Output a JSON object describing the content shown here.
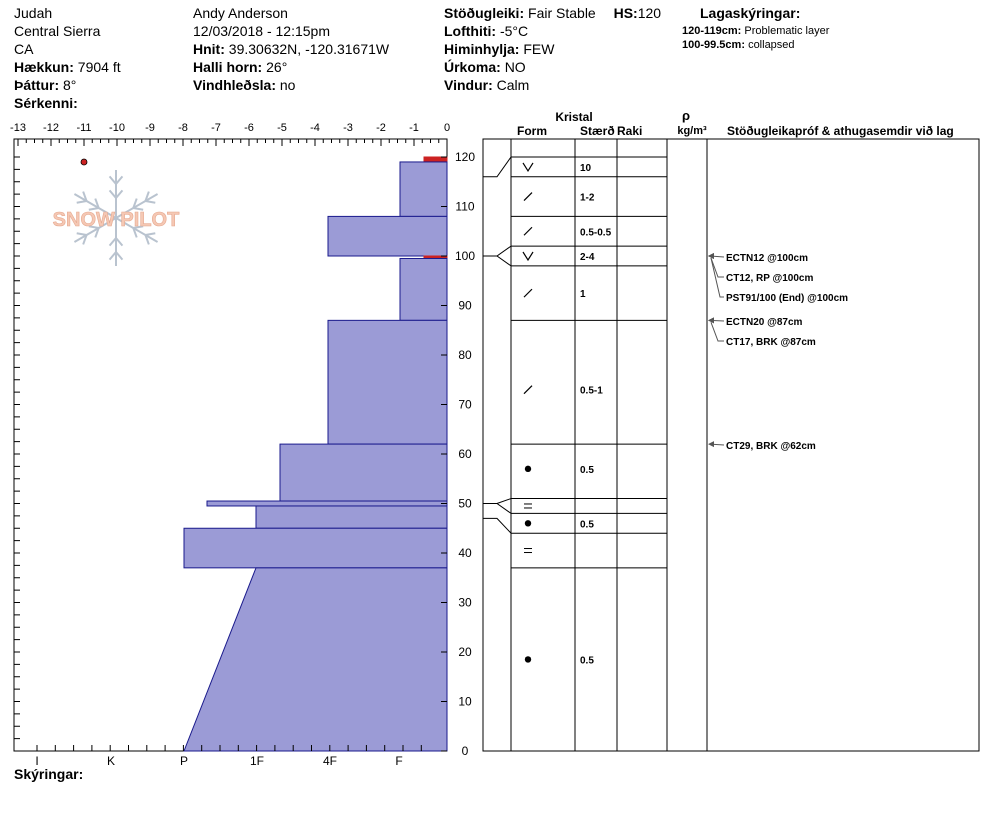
{
  "header": {
    "col1": [
      "Judah",
      "Central Sierra",
      "CA"
    ],
    "elevation_label": "Hækkun:",
    "elevation_value": "7904 ft",
    "aspect_label": "Þáttur:",
    "aspect_value": "8°",
    "specifics_label": "Sérkenni:",
    "observer": "Andy Anderson",
    "datetime": "12/03/2018 - 12:15pm",
    "coords_label": "Hnit:",
    "coords_value": "39.30632N, -120.31671W",
    "slope_label": "Halli horn:",
    "slope_value": "26°",
    "wind_loading_label": "Vindhleðsla:",
    "wind_loading_value": "no",
    "stability_label": "Stöðugleiki:",
    "stability_value": "Fair Stable",
    "hs_label": "HS:",
    "hs_value": "120",
    "air_temp_label": "Lofthiti:",
    "air_temp_value": "-5°C",
    "sky_label": "Himinhylja:",
    "sky_value": "FEW",
    "precip_label": "Úrkoma:",
    "precip_value": "NO",
    "wind_label": "Vindur:",
    "wind_value": "Calm",
    "layer_notes_title": "Lagaskýringar:",
    "layer_notes": [
      {
        "range": "120-119cm:",
        "text": "Problematic layer"
      },
      {
        "range": "100-99.5cm:",
        "text": "collapsed"
      }
    ]
  },
  "footer": {
    "notes_label": "Skýringar:"
  },
  "logo": {
    "text": "SNOW PILOT"
  },
  "table_headers": {
    "crystal": "Kristal",
    "form": "Form",
    "size": "Stærð",
    "moisture": "Raki",
    "density_symbol": "ρ",
    "density_unit": "kg/m³",
    "tests": "Stöðugleikapróf & athugasemdir við lag"
  },
  "chart_data": {
    "type": "area",
    "temp_axis": {
      "ticks": [
        "-13",
        "-12",
        "-11",
        "-10",
        "-9",
        "-8",
        "-7",
        "-6",
        "-5",
        "-4",
        "-3",
        "-2",
        "-1",
        "0"
      ],
      "range": [
        -13,
        0
      ]
    },
    "height_axis": {
      "ticks": [
        "0",
        "10",
        "20",
        "30",
        "40",
        "50",
        "60",
        "70",
        "80",
        "90",
        "100",
        "110",
        "120"
      ],
      "range": [
        0,
        123
      ]
    },
    "hardness_axis": {
      "ticks": [
        "I",
        "K",
        "P",
        "1F",
        "4F",
        "F"
      ]
    },
    "temperature_points": [
      {
        "temp": -11,
        "height": 120
      }
    ],
    "hardness_layers": [
      {
        "top": 120,
        "bottom": 119,
        "hardness": "F",
        "marker": true
      },
      {
        "top": 119,
        "bottom": 108,
        "hardness": "F-"
      },
      {
        "top": 108,
        "bottom": 100,
        "hardness": "4F"
      },
      {
        "top": 100,
        "bottom": 99.5,
        "hardness": "F",
        "marker": true
      },
      {
        "top": 99.5,
        "bottom": 87,
        "hardness": "F-"
      },
      {
        "top": 87,
        "bottom": 62,
        "hardness": "4F"
      },
      {
        "top": 62,
        "bottom": 50.5,
        "hardness": "4F-"
      },
      {
        "top": 50.5,
        "bottom": 49.5,
        "hardness": "1F+"
      },
      {
        "top": 49.5,
        "bottom": 45,
        "hardness": "1F-"
      },
      {
        "top": 45,
        "bottom": 37,
        "hardness": "P+"
      },
      {
        "top": 37,
        "bottom": 0,
        "hardness": "1F to P"
      }
    ],
    "crystal_layers": [
      {
        "top": 120,
        "bottom": 116,
        "form": "V",
        "size": "10"
      },
      {
        "top": 116,
        "bottom": 108,
        "form": "/",
        "size": "1-2"
      },
      {
        "top": 108,
        "bottom": 102,
        "form": "/",
        "size": "0.5-0.5"
      },
      {
        "top": 102,
        "bottom": 98,
        "form": "V",
        "size": "2-4"
      },
      {
        "top": 98,
        "bottom": 87,
        "form": "/",
        "size": "1"
      },
      {
        "top": 87,
        "bottom": 62,
        "form": "/",
        "size": "0.5-1"
      },
      {
        "top": 62,
        "bottom": 51,
        "form": "●",
        "size": "0.5"
      },
      {
        "top": 51,
        "bottom": 48,
        "form": "=",
        "size": ""
      },
      {
        "top": 48,
        "bottom": 44,
        "form": "●",
        "size": "0.5"
      },
      {
        "top": 44,
        "bottom": 37,
        "form": "=",
        "size": ""
      },
      {
        "top": 37,
        "bottom": 0,
        "form": "●",
        "size": "0.5"
      }
    ],
    "tests": [
      {
        "label": "ECTN12 @100cm",
        "height": 100
      },
      {
        "label": "CT12, RP @100cm",
        "height": 100
      },
      {
        "label": "PST91/100 (End) @100cm",
        "height": 100
      },
      {
        "label": "ECTN20 @87cm",
        "height": 87
      },
      {
        "label": "CT17, BRK @87cm",
        "height": 87
      },
      {
        "label": "CT29, BRK @62cm",
        "height": 62
      }
    ],
    "colors": {
      "fill": "#9b9bd6",
      "stroke": "#1a1a8c",
      "marker": "#cc2222"
    }
  }
}
